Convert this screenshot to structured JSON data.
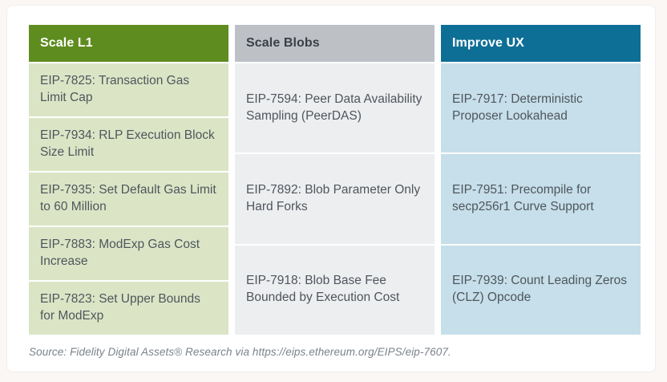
{
  "page": {
    "background_color": "#faf7f5",
    "card_background_color": "#ffffff",
    "cell_text_color": "#4f565c",
    "source_text_color": "#7b8289"
  },
  "columns": [
    {
      "header": "Scale L1",
      "header_color": "#5f8c1f",
      "header_text_color": "#ffffff",
      "cell_color": "#dbe5c6",
      "items": [
        "EIP-7825: Transaction Gas Limit Cap",
        "EIP-7934: RLP Execution Block Size Limit",
        "EIP-7935: Set Default Gas Limit to 60 Million",
        "EIP-7883: ModExp Gas Cost Increase",
        "EIP-7823: Set Upper Bounds for ModExp"
      ]
    },
    {
      "header": "Scale Blobs",
      "header_color": "#bdc1c6",
      "header_text_color": "#3a4046",
      "cell_color": "#edeef0",
      "items": [
        "EIP-7594: Peer Data Availability Sampling (PeerDAS)",
        "EIP-7892: Blob Parameter Only Hard Forks",
        "EIP-7918: Blob Base Fee Bounded by Execution Cost"
      ]
    },
    {
      "header": "Improve UX",
      "header_color": "#0e6f96",
      "header_text_color": "#ffffff",
      "cell_color": "#c6dfea",
      "items": [
        "EIP-7917: Deterministic Proposer Lookahead",
        "EIP-7951: Precompile for secp256r1 Curve Support",
        "EIP-7939: Count Leading Zeros (CLZ) Opcode"
      ]
    }
  ],
  "source_note": "Source: Fidelity Digital Assets® Research via https://eips.ethereum.org/EIPS/eip-7607."
}
